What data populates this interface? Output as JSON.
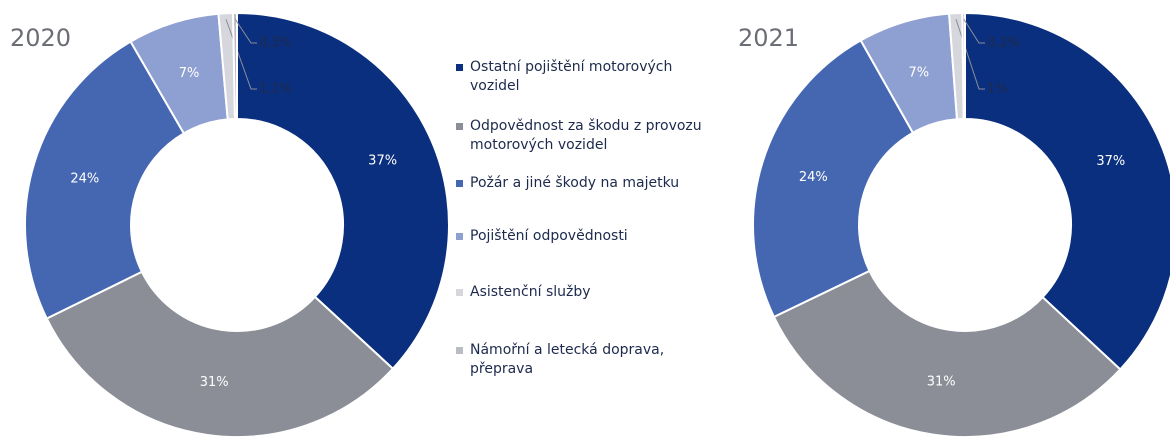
{
  "chart_data": [
    {
      "type": "pie",
      "title": "2020",
      "categories": [
        "Ostatní pojištění motorových vozidel",
        "Odpovědnost za škodu z provozu motorových vozidel",
        "Požár a jiné škody na majetku",
        "Pojištění odpovědnosti",
        "Asistenční služby",
        "Námořní a letecká doprava, přeprava"
      ],
      "values": [
        37,
        31,
        24,
        7,
        1.1,
        0.3
      ],
      "value_labels": [
        "37%",
        "31%",
        "24%",
        "7%",
        "1,1%",
        "0,3%"
      ],
      "colors": [
        "#0b2f7f",
        "#8b8e97",
        "#4567b1",
        "#8e9fd2",
        "#d5d7dd",
        "#b9bcc3"
      ]
    },
    {
      "type": "pie",
      "title": "2021",
      "values": [
        37,
        31,
        24,
        7,
        1,
        0.2
      ],
      "value_labels": [
        "37%",
        "31%",
        "24%",
        "7%",
        "1%",
        "0,2%"
      ],
      "colors": [
        "#0b2f7f",
        "#8b8e97",
        "#4567b1",
        "#8e9fd2",
        "#d5d7dd",
        "#b9bcc3"
      ]
    }
  ]
}
